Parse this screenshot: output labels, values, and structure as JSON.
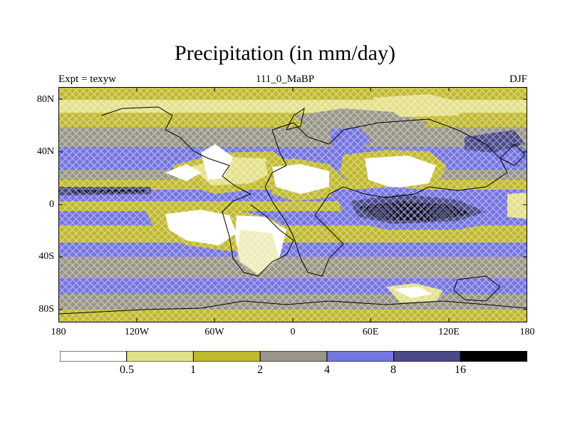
{
  "title": "Precipitation (in mm/day)",
  "subtitle_left": "Expt = texyw",
  "subtitle_center": "111_0_MaBP",
  "subtitle_right": "DJF",
  "y_ticks": [
    "80N",
    "40N",
    "0",
    "40S",
    "80S"
  ],
  "x_ticks": [
    "180",
    "120W",
    "60W",
    "0",
    "60E",
    "120E",
    "180"
  ],
  "colorbar": {
    "colors": [
      "#ffffff",
      "#e3e08a",
      "#c0b92e",
      "#999688",
      "#7575e0",
      "#4a4a8a",
      "#000000"
    ],
    "labels": [
      "0.5",
      "1",
      "2",
      "4",
      "8",
      "16"
    ]
  }
}
